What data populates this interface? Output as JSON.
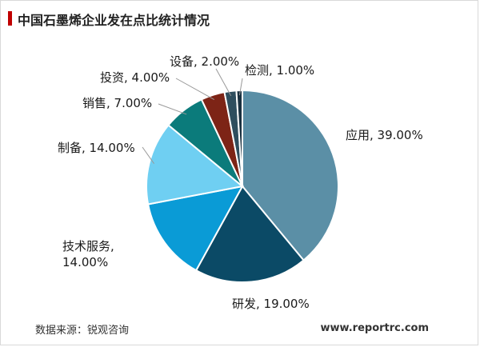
{
  "page": {
    "title": "中国石墨烯企业发在点比统计情况",
    "source": "数据来源：锐观咨询",
    "site": "www.reportrc.com"
  },
  "chart_data": {
    "type": "pie",
    "title": "中国石墨烯企业发在点比统计情况",
    "unit": "%",
    "slices": [
      {
        "name": "应用",
        "value": 39.0,
        "label": "应用, 39.00%",
        "color": "#5b8fa6"
      },
      {
        "name": "研发",
        "value": 19.0,
        "label": "研发, 19.00%",
        "color": "#0b4a66"
      },
      {
        "name": "技术服务",
        "value": 14.0,
        "label_lines": [
          "技术服务,",
          "14.00%"
        ],
        "color": "#0a9bd6"
      },
      {
        "name": "制备",
        "value": 14.0,
        "label": "制备, 14.00%",
        "color": "#6fcff2"
      },
      {
        "name": "销售",
        "value": 7.0,
        "label": "销售, 7.00%",
        "color": "#0b7b7b"
      },
      {
        "name": "投资",
        "value": 4.0,
        "label": "投资, 4.00%",
        "color": "#7d2416"
      },
      {
        "name": "设备",
        "value": 2.0,
        "label": "设备, 2.00%",
        "color": "#2f4e5e"
      },
      {
        "name": "检测",
        "value": 1.0,
        "label": "检测, 1.00%",
        "color": "#1b3140"
      }
    ]
  }
}
